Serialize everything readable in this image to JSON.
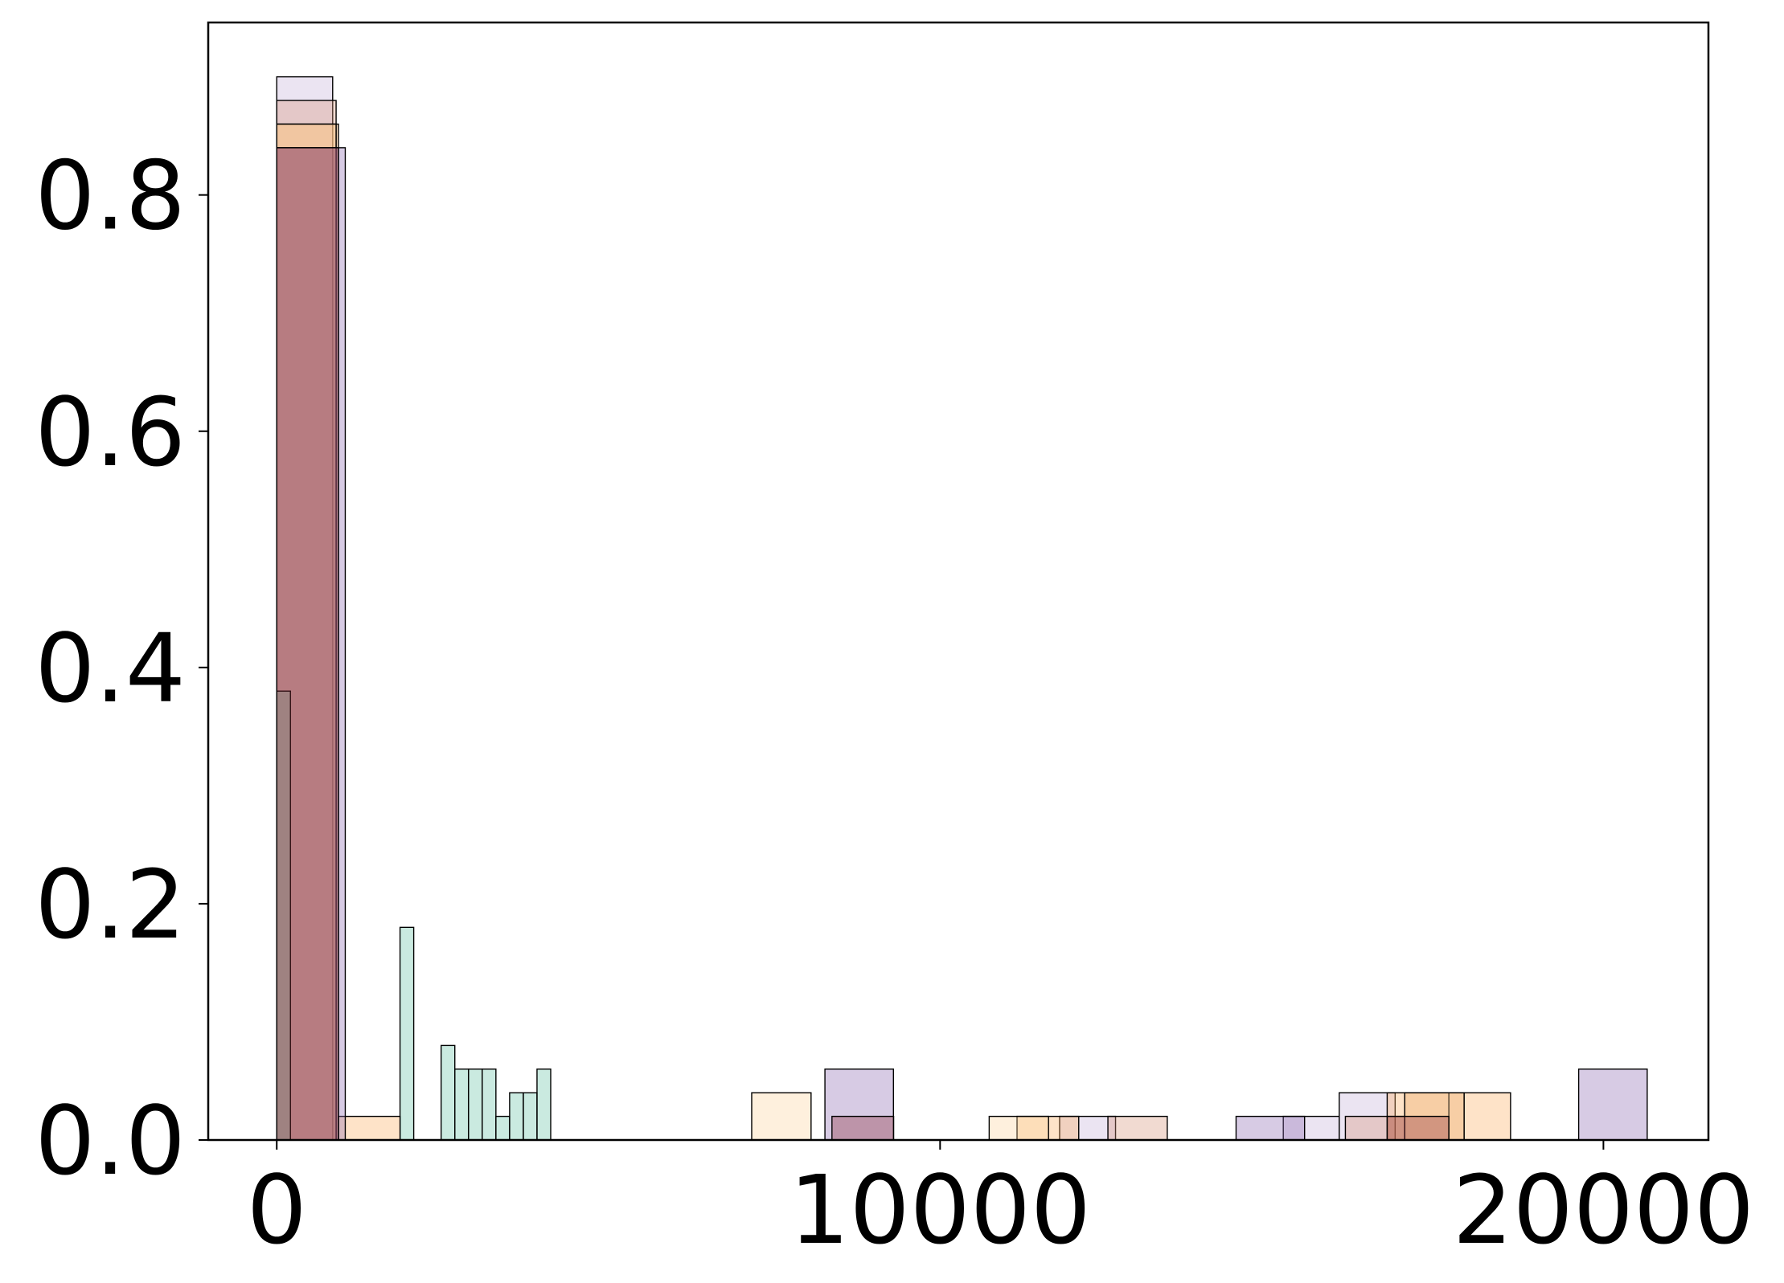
{
  "chart_data": {
    "type": "histogram",
    "xlim": [
      -1033,
      21583
    ],
    "ylim": [
      0,
      0.946
    ],
    "xticks": [
      0,
      10000,
      20000
    ],
    "yticks": [
      {
        "value": 0,
        "label": "0.0"
      },
      0.2,
      0.4,
      0.6,
      0.8
    ],
    "series": [
      {
        "color": "#c6b3d9",
        "bins": [
          0,
          843,
          1686,
          2529,
          3372,
          4215,
          5058,
          5901,
          6744,
          7587,
          8430,
          9273,
          10116,
          10959,
          11802,
          12645,
          13488,
          14331,
          15174,
          16017,
          16860
        ],
        "values": [
          0.9,
          0,
          0,
          0,
          0,
          0,
          0,
          0,
          0,
          0,
          0,
          0,
          0,
          0,
          0.02,
          0,
          0,
          0,
          0.02,
          0.04
        ]
      },
      {
        "color": "#d6957a",
        "bins": [
          0,
          895,
          1790,
          2685,
          3580,
          4475,
          5370,
          6265,
          7160,
          8055,
          8950,
          9845,
          10740,
          11635,
          12530,
          13425,
          14320,
          15215,
          16110,
          17005,
          17900
        ],
        "values": [
          0.88,
          0,
          0,
          0,
          0,
          0,
          0,
          0,
          0,
          0,
          0,
          0,
          0,
          0,
          0.02,
          0,
          0,
          0,
          0.02,
          0.04
        ]
      },
      {
        "color": "#fdae61",
        "bins": [
          0,
          930,
          1860,
          2790,
          3720,
          4650,
          5580,
          6510,
          7440,
          8370,
          9300,
          10230,
          11160,
          12090,
          13020,
          13950,
          14880,
          15810,
          16740,
          17670,
          18600
        ],
        "values": [
          0.86,
          0.02,
          0,
          0,
          0,
          0,
          0,
          0,
          0,
          0,
          0,
          0,
          0.02,
          0,
          0,
          0,
          0,
          0,
          0.04,
          0.04
        ]
      },
      {
        "color": "#fdd49e",
        "bins": [
          0,
          895,
          1790,
          2685,
          3580,
          4475,
          5370,
          6265,
          7160,
          8055,
          8950,
          9845,
          10740,
          11635,
          12530,
          13425,
          14320,
          15215,
          16110,
          17005,
          17900
        ],
        "values": [
          0.86,
          0,
          0,
          0,
          0,
          0,
          0,
          0,
          0.04,
          0,
          0,
          0,
          0.02,
          0,
          0,
          0,
          0,
          0,
          0,
          0.04
        ]
      },
      {
        "color": "#8c6bb1",
        "bins": [
          0,
          1033,
          2066,
          3099,
          4132,
          5165,
          6198,
          7231,
          8264,
          9297,
          10330,
          11363,
          12396,
          13429,
          14462,
          15495,
          16528,
          17561,
          18594,
          19627,
          20660
        ],
        "values": [
          0.84,
          0,
          0,
          0,
          0,
          0,
          0,
          0,
          0.06,
          0,
          0,
          0,
          0,
          0,
          0.02,
          0,
          0,
          0,
          0,
          0.06
        ]
      },
      {
        "color": "#66c2a5",
        "bins": [
          0,
          206.5,
          413,
          619.5,
          826,
          1032.5,
          1239,
          1445.5,
          1652,
          1858.5,
          2065,
          2271.5,
          2478,
          2684.5,
          2891,
          3097.5,
          3304,
          3510.5,
          3717,
          3923.5,
          4130
        ],
        "values": [
          0.38,
          0,
          0,
          0,
          0,
          0,
          0,
          0,
          0,
          0.18,
          0,
          0,
          0.08,
          0.06,
          0.06,
          0.06,
          0.02,
          0.04,
          0.04,
          0.06
        ]
      },
      {
        "color": "#8c2d3c",
        "bins": [
          0,
          930,
          1860,
          2790,
          3720,
          4650,
          5580,
          6510,
          7440,
          8370,
          9300,
          10230,
          11160,
          12090,
          13020,
          13950,
          14880,
          15810,
          16740,
          17670,
          18600
        ],
        "values": [
          0.84,
          0,
          0,
          0,
          0,
          0,
          0,
          0,
          0,
          0.02,
          0,
          0,
          0,
          0,
          0,
          0,
          0,
          0,
          0.02,
          0
        ]
      }
    ]
  }
}
